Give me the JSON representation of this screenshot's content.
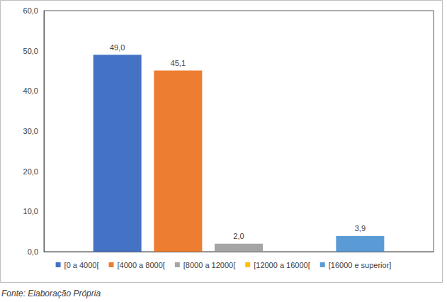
{
  "chart_data": {
    "type": "bar",
    "categories": [
      null
    ],
    "series": [
      {
        "name": "[0 a 4000[",
        "color": "#4472c4",
        "values": [
          49.0
        ],
        "value_labels": [
          "49,0"
        ]
      },
      {
        "name": "[4000 a 8000[",
        "color": "#ed7d31",
        "values": [
          45.1
        ],
        "value_labels": [
          "45,1"
        ]
      },
      {
        "name": "[8000 a 12000[",
        "color": "#a5a5a5",
        "values": [
          2.0
        ],
        "value_labels": [
          "2,0"
        ]
      },
      {
        "name": "[12000 a 16000[",
        "color": "#ffc000",
        "values": [
          null
        ],
        "value_labels": [
          null
        ]
      },
      {
        "name": "[16000 e superior]",
        "color": "#5b9bd5",
        "values": [
          3.9
        ],
        "value_labels": [
          "3,9"
        ]
      }
    ],
    "ylim": [
      0,
      60
    ],
    "yticks": [
      {
        "value": 0,
        "label": "0,0"
      },
      {
        "value": 10,
        "label": "10,0"
      },
      {
        "value": 20,
        "label": "20,0"
      },
      {
        "value": 30,
        "label": "30,0"
      },
      {
        "value": 40,
        "label": "40,0"
      },
      {
        "value": 50,
        "label": "50,0"
      },
      {
        "value": 60,
        "label": "60,0"
      }
    ],
    "grid": false,
    "legend": "bottom",
    "data_labels": true,
    "tick_labels": "y",
    "source": "Fonte: Elaboração Própria"
  }
}
